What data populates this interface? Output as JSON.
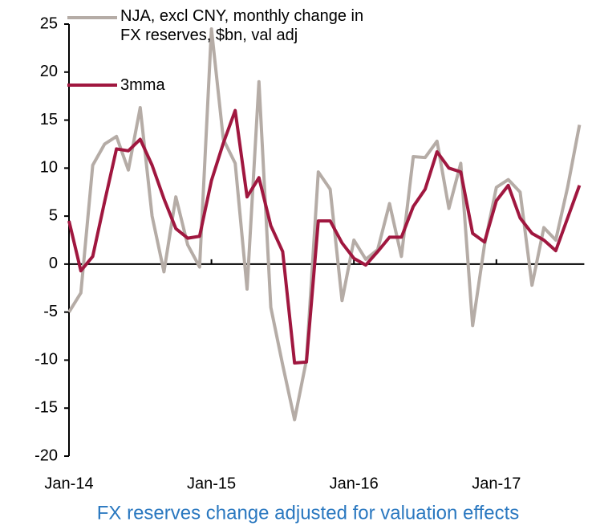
{
  "chart_data": {
    "type": "line",
    "title": "FX reserves change adjusted for valuation effects",
    "categories": [
      "Jan-14",
      null,
      null,
      null,
      null,
      null,
      null,
      null,
      null,
      null,
      null,
      null,
      "Jan-15",
      null,
      null,
      null,
      null,
      null,
      null,
      null,
      null,
      null,
      null,
      null,
      "Jan-16",
      null,
      null,
      null,
      null,
      null,
      null,
      null,
      null,
      null,
      null,
      null,
      "Jan-17",
      null,
      null,
      null,
      null,
      null,
      null,
      null
    ],
    "series": [
      {
        "name": "NJA, excl CNY, monthly change in FX reserves, $bn, val adj",
        "color": "#b5aca6",
        "values": [
          -5,
          -3,
          10.3,
          12.5,
          13.3,
          9.8,
          16.3,
          5,
          -0.8,
          7,
          2,
          -0.3,
          24.5,
          13,
          10.5,
          -2.6,
          19,
          -4.5,
          -10.5,
          -16.2,
          -10,
          9.6,
          7.8,
          -3.8,
          2.5,
          0.5,
          1.5,
          6.3,
          0.8,
          11.2,
          11.1,
          12.8,
          5.8,
          10.5,
          -6.4,
          2,
          8,
          8.8,
          7.5,
          -2.2,
          3.8,
          2.5,
          8,
          14.5
        ]
      },
      {
        "name": "3mma",
        "color": "#a0173f",
        "values": [
          4.5,
          -0.7,
          0.8,
          6.5,
          12,
          11.8,
          13,
          10.3,
          6.8,
          3.7,
          2.7,
          2.9,
          8.7,
          12.6,
          16,
          7,
          9,
          4,
          1.3,
          -10.3,
          -10.2,
          4.5,
          4.5,
          2.2,
          0.6,
          -0.1,
          1.3,
          2.8,
          2.8,
          6,
          7.8,
          11.7,
          10,
          9.6,
          3.2,
          2.3,
          6.6,
          8.2,
          4.8,
          3.2,
          2.5,
          1.4,
          4.8,
          8.2
        ]
      }
    ],
    "ylim": [
      -20,
      25
    ],
    "yticks": [
      -20,
      -15,
      -10,
      -5,
      0,
      5,
      10,
      15,
      20,
      25
    ]
  }
}
